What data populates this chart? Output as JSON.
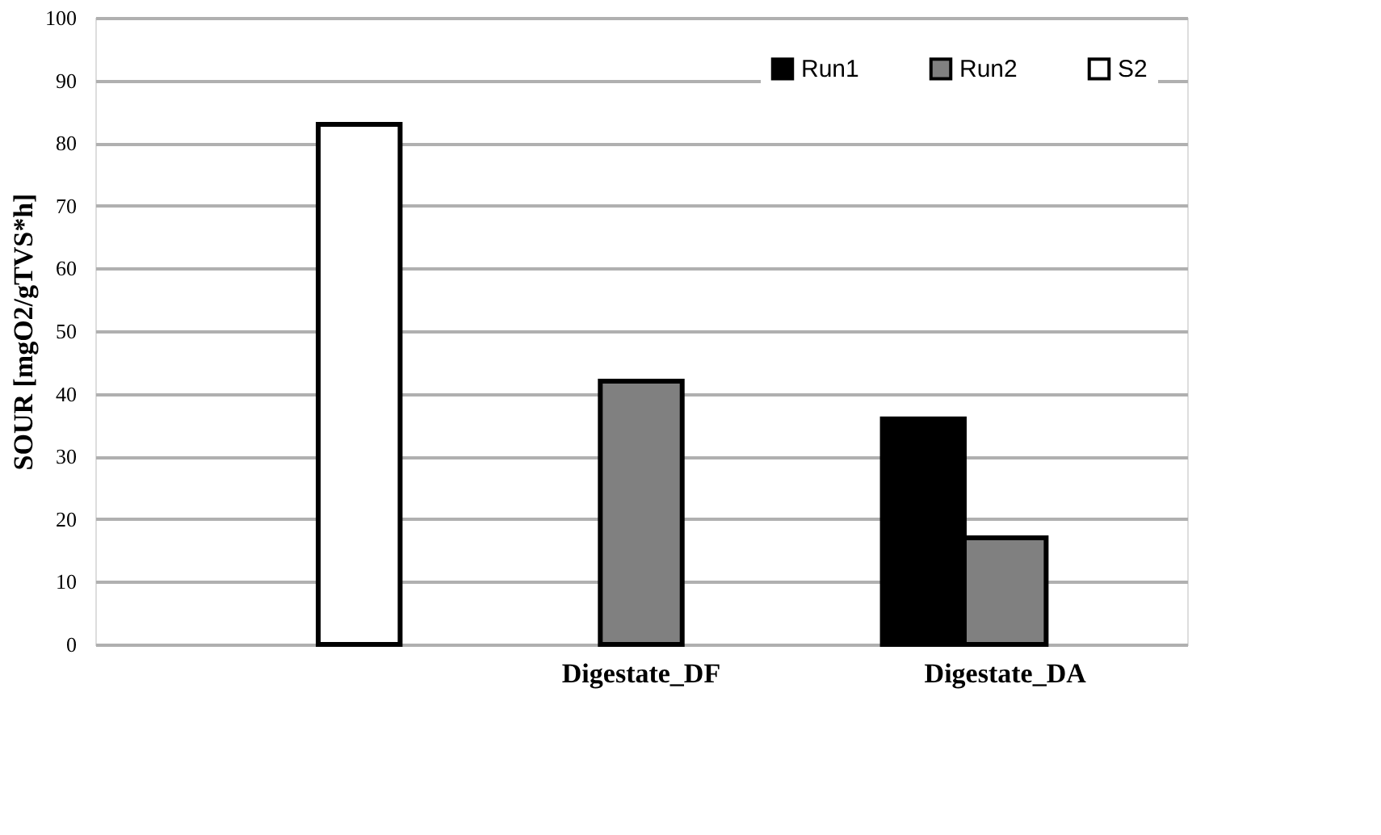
{
  "chart_data": {
    "type": "bar",
    "ylabel": "SOUR [mgO2/gTVS*h]",
    "categories": [
      null,
      "Digestate_DF",
      "Digestate_DA"
    ],
    "series": [
      {
        "name": "Run1",
        "color": "#000000",
        "values": [
          null,
          null,
          36
        ]
      },
      {
        "name": "Run2",
        "color": "#808080",
        "values": [
          null,
          42,
          17
        ]
      },
      {
        "name": "S2",
        "color": "#ffffff",
        "values": [
          83,
          null,
          null
        ]
      }
    ],
    "ylim": [
      0,
      100
    ],
    "yticks": [
      0,
      10,
      20,
      30,
      40,
      50,
      60,
      70,
      80,
      90,
      100
    ],
    "grid": "y",
    "legend": "top right"
  }
}
